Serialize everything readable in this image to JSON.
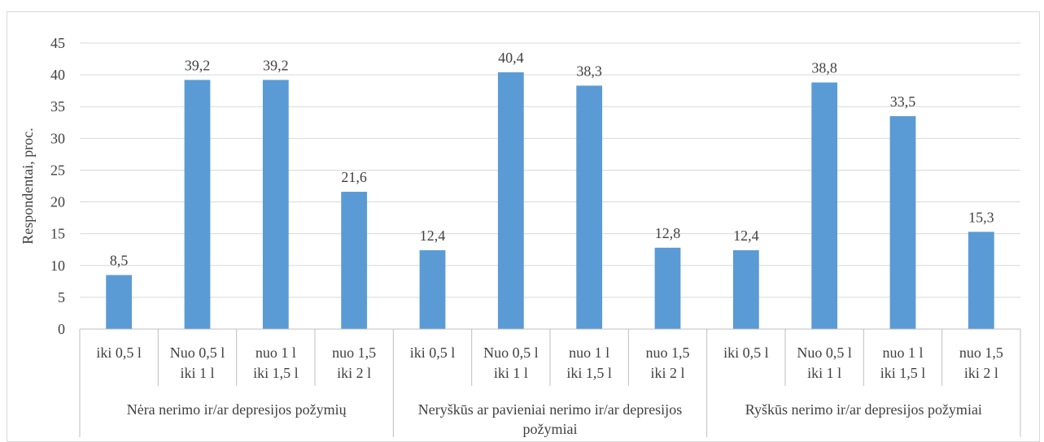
{
  "chart_data": {
    "type": "bar",
    "ylabel": "Respondentai, proc.",
    "ylim": [
      0,
      45
    ],
    "yticks": [
      0,
      5,
      10,
      15,
      20,
      25,
      30,
      35,
      40,
      45
    ],
    "grid": true,
    "bar_color": "#5b9bd5",
    "groups": [
      {
        "label": "Nėra nerimo ir/ar depresijos požymių",
        "categories": [
          [
            "iki 0,5 l"
          ],
          [
            "Nuo 0,5 l",
            "iki 1 l"
          ],
          [
            "nuo 1 l",
            "iki 1,5 l"
          ],
          [
            "nuo 1,5",
            "iki 2 l"
          ]
        ],
        "values": [
          8.5,
          39.2,
          39.2,
          21.6
        ],
        "value_labels": [
          "8,5",
          "39,2",
          "39,2",
          "21,6"
        ]
      },
      {
        "label": "Neryškūs ar pavieniai nerimo ir/ar depresijos požymiai",
        "categories": [
          [
            "iki 0,5 l"
          ],
          [
            "Nuo 0,5 l",
            "iki 1 l"
          ],
          [
            "nuo 1 l",
            "iki 1,5 l"
          ],
          [
            "nuo 1,5",
            "iki 2 l"
          ]
        ],
        "values": [
          12.4,
          40.4,
          38.3,
          12.8
        ],
        "value_labels": [
          "12,4",
          "40,4",
          "38,3",
          "12,8"
        ]
      },
      {
        "label": "Ryškūs nerimo ir/ar depresijos požymiai",
        "categories": [
          [
            "iki 0,5 l"
          ],
          [
            "Nuo 0,5 l",
            "iki 1 l"
          ],
          [
            "nuo 1 l",
            "iki 1,5 l"
          ],
          [
            "nuo 1,5",
            "iki 2 l"
          ]
        ],
        "values": [
          12.4,
          38.8,
          33.5,
          15.3
        ],
        "value_labels": [
          "12,4",
          "38,8",
          "33,5",
          "15,3"
        ]
      }
    ]
  }
}
